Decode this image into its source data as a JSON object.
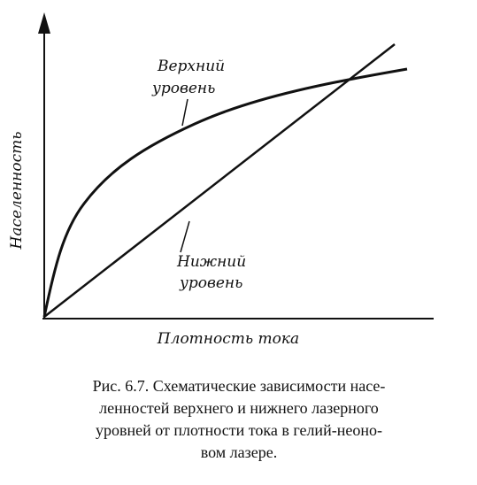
{
  "figure": {
    "y_axis_label": "Населенность",
    "x_axis_label": "Плотность тока",
    "upper_curve_label": [
      "Верхний",
      "уровень"
    ],
    "lower_curve_label": [
      "Нижний",
      "уровень"
    ]
  },
  "caption": {
    "lines": [
      "Рис. 6.7. Схематические зависимости насе-",
      "ленностей верхнего и нижнего лазерного",
      "уровней от плотности тока в гелий-неоно-",
      "вом лазере."
    ]
  }
}
